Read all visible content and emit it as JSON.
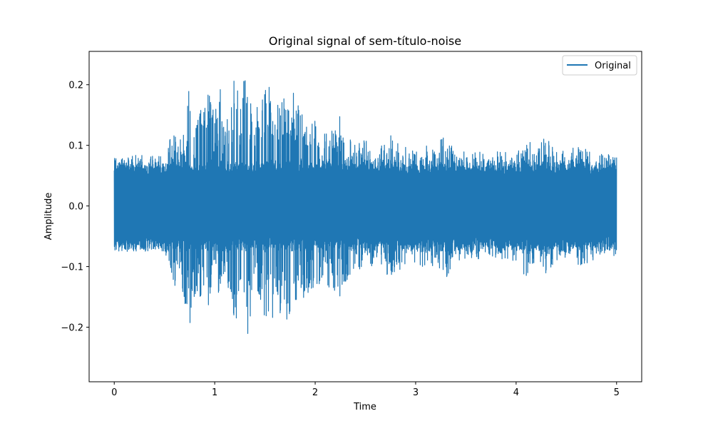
{
  "chart_data": {
    "type": "line",
    "title": "Original signal of sem-título-noise",
    "xlabel": "Time",
    "ylabel": "Amplitude",
    "xlim": [
      -0.25,
      5.25
    ],
    "ylim": [
      -0.29,
      0.255
    ],
    "x_ticks": [
      0,
      1,
      2,
      3,
      4,
      5
    ],
    "x_tick_labels": [
      "0",
      "1",
      "2",
      "3",
      "4",
      "5"
    ],
    "y_ticks": [
      -0.2,
      -0.1,
      0.0,
      0.1,
      0.2
    ],
    "y_tick_labels": [
      "−0.2",
      "−0.1",
      "0.0",
      "0.1",
      "0.2"
    ],
    "grid": false,
    "legend": {
      "placement": "upper right",
      "entries": [
        "Original"
      ]
    },
    "series": [
      {
        "name": "Original",
        "color": "#1f77b4",
        "x_range": [
          0,
          5
        ],
        "baseline_noise_amplitude": 0.075,
        "envelope": {
          "t": [
            0,
            0.5,
            0.55,
            0.6,
            0.62,
            0.7,
            0.75,
            0.8,
            0.9,
            0.95,
            1.0,
            1.05,
            1.1,
            1.15,
            1.2,
            1.25,
            1.3,
            1.35,
            1.4,
            1.5,
            1.55,
            1.6,
            1.7,
            1.75,
            1.8,
            1.9,
            2.0,
            2.05,
            2.1,
            2.2,
            2.25,
            2.3,
            2.4,
            2.5,
            2.6,
            2.75,
            2.9,
            3.0,
            3.2,
            3.3,
            3.4,
            3.6,
            3.8,
            4.0,
            4.1,
            4.2,
            4.3,
            4.4,
            4.6,
            4.8,
            5.0
          ],
          "max": [
            0.085,
            0.085,
            0.11,
            0.15,
            0.1,
            0.13,
            0.21,
            0.14,
            0.17,
            0.19,
            0.15,
            0.2,
            0.13,
            0.16,
            0.22,
            0.17,
            0.23,
            0.19,
            0.16,
            0.19,
            0.2,
            0.16,
            0.19,
            0.2,
            0.18,
            0.16,
            0.14,
            0.13,
            0.12,
            0.13,
            0.15,
            0.12,
            0.1,
            0.11,
            0.09,
            0.12,
            0.1,
            0.1,
            0.1,
            0.12,
            0.09,
            0.09,
            0.09,
            0.09,
            0.12,
            0.09,
            0.12,
            0.09,
            0.1,
            0.09,
            0.085
          ],
          "min": [
            -0.075,
            -0.075,
            -0.1,
            -0.14,
            -0.1,
            -0.16,
            -0.2,
            -0.15,
            -0.16,
            -0.17,
            -0.1,
            -0.16,
            -0.11,
            -0.15,
            -0.2,
            -0.16,
            -0.26,
            -0.2,
            -0.12,
            -0.19,
            -0.2,
            -0.17,
            -0.19,
            -0.2,
            -0.18,
            -0.16,
            -0.14,
            -0.13,
            -0.13,
            -0.14,
            -0.16,
            -0.13,
            -0.1,
            -0.11,
            -0.1,
            -0.12,
            -0.1,
            -0.1,
            -0.1,
            -0.13,
            -0.09,
            -0.09,
            -0.09,
            -0.09,
            -0.12,
            -0.09,
            -0.12,
            -0.09,
            -0.1,
            -0.09,
            -0.085
          ]
        }
      }
    ]
  }
}
